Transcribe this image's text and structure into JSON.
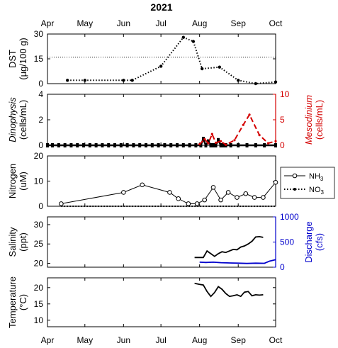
{
  "chart_data": {
    "type": "line",
    "title": "2021",
    "x_months": [
      "Apr",
      "May",
      "Jun",
      "Jul",
      "Aug",
      "Sep",
      "Oct"
    ],
    "x_months_bottom": [
      "Apr",
      "May",
      "Jun",
      "Jul",
      "Aug",
      "Sep",
      "Oct"
    ],
    "panels": [
      {
        "id": "dst",
        "ylabel_lines": [
          "DST",
          "(µg/100 g)"
        ],
        "ylim": [
          0,
          30
        ],
        "yticks": [
          0,
          15,
          30
        ],
        "reference_line": 16,
        "series": [
          {
            "style": "dotted",
            "color": "#000000",
            "x": [
              "2021-04-17",
              "2021-05-01",
              "2021-06-01",
              "2021-06-08",
              "2021-07-01",
              "2021-07-19",
              "2021-07-27",
              "2021-08-03",
              "2021-08-17",
              "2021-09-01",
              "2021-09-15",
              "2021-10-01"
            ],
            "y": [
              2,
              2,
              2,
              2,
              10.5,
              28,
              25.5,
              9,
              10,
              2,
              0,
              1
            ]
          }
        ]
      },
      {
        "id": "dinophysis",
        "ylabel_lines": [
          "Dinophysis",
          "(cells/mL)"
        ],
        "ylim": [
          0,
          4
        ],
        "yticks": [
          0,
          2,
          4
        ],
        "right_ylabel_lines": [
          "Mesodinium",
          "(cells/mL)"
        ],
        "right_ylim": [
          0,
          10
        ],
        "right_yticks": [
          0,
          5,
          10
        ],
        "right_color": "#d40000",
        "series": [
          {
            "axis": "left",
            "style": "solid-dense-markers",
            "color": "#000000",
            "x": [
              "2021-04-01",
              "2021-04-05",
              "2021-04-10",
              "2021-04-15",
              "2021-04-20",
              "2021-04-25",
              "2021-04-30",
              "2021-05-05",
              "2021-05-10",
              "2021-05-15",
              "2021-05-20",
              "2021-05-25",
              "2021-05-30",
              "2021-06-04",
              "2021-06-09",
              "2021-06-14",
              "2021-06-19",
              "2021-06-24",
              "2021-06-29",
              "2021-07-04",
              "2021-07-09",
              "2021-07-14",
              "2021-07-19",
              "2021-07-24",
              "2021-07-29",
              "2021-08-02",
              "2021-08-04",
              "2021-08-06",
              "2021-08-08",
              "2021-08-10",
              "2021-08-12",
              "2021-08-14",
              "2021-08-16",
              "2021-08-18",
              "2021-08-20",
              "2021-08-22",
              "2021-08-26",
              "2021-09-01",
              "2021-09-08",
              "2021-09-15",
              "2021-09-22",
              "2021-10-01"
            ],
            "y": [
              0,
              0,
              0,
              0,
              0,
              0,
              0,
              0,
              0,
              0,
              0,
              0,
              0,
              0,
              0,
              0,
              0,
              0,
              0,
              0,
              0,
              0,
              0,
              0,
              0,
              0,
              0.5,
              0,
              0.3,
              0,
              0,
              0,
              0.4,
              0,
              0,
              0,
              0,
              0,
              0,
              0,
              0,
              0
            ]
          },
          {
            "axis": "right",
            "style": "dashed",
            "color": "#d40000",
            "x": [
              "2021-08-01",
              "2021-08-05",
              "2021-08-08",
              "2021-08-11",
              "2021-08-14",
              "2021-08-18",
              "2021-08-22",
              "2021-08-29",
              "2021-09-05",
              "2021-09-10",
              "2021-09-18",
              "2021-09-25",
              "2021-10-01"
            ],
            "y": [
              0.2,
              1.2,
              0.4,
              2.2,
              0.5,
              0.8,
              0.1,
              1.0,
              4.0,
              6.0,
              2.0,
              0.4,
              0.8
            ]
          }
        ]
      },
      {
        "id": "nitrogen",
        "ylabel_lines": [
          "Nitrogen",
          "(uM)"
        ],
        "ylim": [
          0,
          20
        ],
        "yticks": [
          0,
          10,
          20
        ],
        "legend": {
          "position": "right",
          "entries": [
            "NH3",
            "NO3"
          ]
        },
        "series": [
          {
            "name": "NH3",
            "style": "solid-circles",
            "color": "#000000",
            "x": [
              "2021-04-12",
              "2021-06-01",
              "2021-06-16",
              "2021-07-08",
              "2021-07-15",
              "2021-07-23",
              "2021-07-30",
              "2021-08-05",
              "2021-08-12",
              "2021-08-18",
              "2021-08-24",
              "2021-08-31",
              "2021-09-07",
              "2021-09-14",
              "2021-09-21",
              "2021-10-01"
            ],
            "y": [
              1,
              5.5,
              8.5,
              5.5,
              3,
              1,
              1,
              2.5,
              7.5,
              2.5,
              5.5,
              3.5,
              5,
              3.5,
              3.5,
              9.5
            ]
          },
          {
            "name": "NO3",
            "style": "dotted",
            "color": "#000000",
            "x": [
              "2021-04-12",
              "2021-06-01",
              "2021-06-16",
              "2021-07-08",
              "2021-07-15",
              "2021-07-23",
              "2021-07-30",
              "2021-08-05",
              "2021-08-12",
              "2021-08-18",
              "2021-08-24",
              "2021-08-31",
              "2021-09-07",
              "2021-09-14",
              "2021-09-21",
              "2021-10-01"
            ],
            "y": [
              0,
              0,
              0,
              0,
              0,
              0,
              0,
              0,
              0,
              0,
              0,
              0,
              0,
              0,
              0,
              0
            ]
          }
        ]
      },
      {
        "id": "salinity",
        "ylabel_lines": [
          "Salinity",
          "(ppt)"
        ],
        "ylim": [
          19,
          32
        ],
        "yticks": [
          20,
          25,
          30
        ],
        "right_ylabel_lines": [
          "Discharge",
          "(cfs)"
        ],
        "right_ylim": [
          0,
          1000
        ],
        "right_yticks": [
          0,
          500,
          1000
        ],
        "right_color": "#0000cc",
        "series": [
          {
            "axis": "left",
            "style": "solid",
            "color": "#000000",
            "x": [
              "2021-07-28",
              "2021-08-01",
              "2021-08-04",
              "2021-08-07",
              "2021-08-10",
              "2021-08-13",
              "2021-08-16",
              "2021-08-19",
              "2021-08-22",
              "2021-08-25",
              "2021-08-28",
              "2021-08-31",
              "2021-09-03",
              "2021-09-06",
              "2021-09-09",
              "2021-09-12",
              "2021-09-15",
              "2021-09-18",
              "2021-09-21"
            ],
            "y": [
              21.5,
              21.5,
              21.5,
              23.2,
              22.5,
              21.8,
              22.5,
              23,
              22.8,
              23.2,
              23.6,
              23.5,
              24.2,
              24.5,
              25,
              25.7,
              26.8,
              26.9,
              26.7
            ]
          },
          {
            "axis": "right",
            "style": "solid",
            "color": "#0000cc",
            "x": [
              "2021-08-01",
              "2021-08-06",
              "2021-08-12",
              "2021-08-18",
              "2021-08-25",
              "2021-09-01",
              "2021-09-08",
              "2021-09-15",
              "2021-09-22",
              "2021-09-26",
              "2021-10-01"
            ],
            "y": [
              100,
              95,
              100,
              90,
              85,
              80,
              75,
              80,
              78,
              120,
              150
            ]
          }
        ]
      },
      {
        "id": "temperature",
        "ylabel_lines": [
          "Temperature",
          "(°C)"
        ],
        "ylim": [
          8,
          23
        ],
        "yticks": [
          10,
          15,
          20
        ],
        "series": [
          {
            "style": "solid",
            "color": "#000000",
            "x": [
              "2021-07-28",
              "2021-08-01",
              "2021-08-04",
              "2021-08-07",
              "2021-08-10",
              "2021-08-13",
              "2021-08-16",
              "2021-08-19",
              "2021-08-22",
              "2021-08-25",
              "2021-08-28",
              "2021-08-31",
              "2021-09-03",
              "2021-09-06",
              "2021-09-09",
              "2021-09-12",
              "2021-09-15",
              "2021-09-18",
              "2021-09-21"
            ],
            "y": [
              21.3,
              21,
              20.8,
              18.8,
              17.3,
              18.5,
              20.3,
              19.5,
              18.2,
              17.3,
              17.5,
              17.8,
              17.3,
              18.6,
              18.8,
              17.5,
              17.8,
              17.7,
              17.8
            ]
          }
        ]
      }
    ]
  }
}
